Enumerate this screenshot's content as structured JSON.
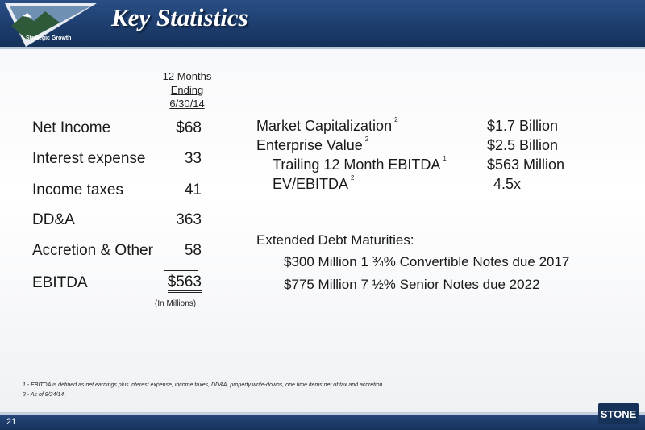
{
  "header": {
    "title": "Key Statistics",
    "tagline": "Strategic Growth"
  },
  "left_table": {
    "column_header": [
      "12 Months",
      "Ending",
      "6/30/14"
    ],
    "rows": [
      {
        "label": "Net Income",
        "value": "$68"
      },
      {
        "label": "Interest expense",
        "value": "33"
      },
      {
        "label": "Income taxes",
        "value": "41"
      },
      {
        "label": "DD&A",
        "value": "363"
      },
      {
        "label": "Accretion & Other",
        "value": "58"
      },
      {
        "label": "EBITDA",
        "value": "$563"
      }
    ],
    "units": "(In Millions)"
  },
  "right_stats": [
    {
      "label": "Market Capitalization",
      "note": "2",
      "value": "$1.7 Billion"
    },
    {
      "label": "Enterprise Value",
      "note": "2",
      "value": "$2.5 Billion"
    },
    {
      "label": "Trailing 12 Month EBITDA",
      "note": "1",
      "value": "$563 Million"
    },
    {
      "label": "EV/EBITDA",
      "note": "2",
      "value": "4.5x"
    }
  ],
  "debt": {
    "heading": "Extended Debt Maturities:",
    "items": [
      "$300 Million  1 ¾% Convertible Notes due 2017",
      "$775 Million  7 ½% Senior Notes due 2022"
    ]
  },
  "footnotes": [
    "1 - EBITDA is defined as net earnings plus interest expense, income taxes, DD&A, property write-downs, one time items net of tax and accretion.",
    "2 - As of 9/24/14."
  ],
  "footer": {
    "page_number": "21",
    "brand": "STONE"
  },
  "colors": {
    "header_blue": "#1d3d6e",
    "footer_blue": "#163259"
  }
}
